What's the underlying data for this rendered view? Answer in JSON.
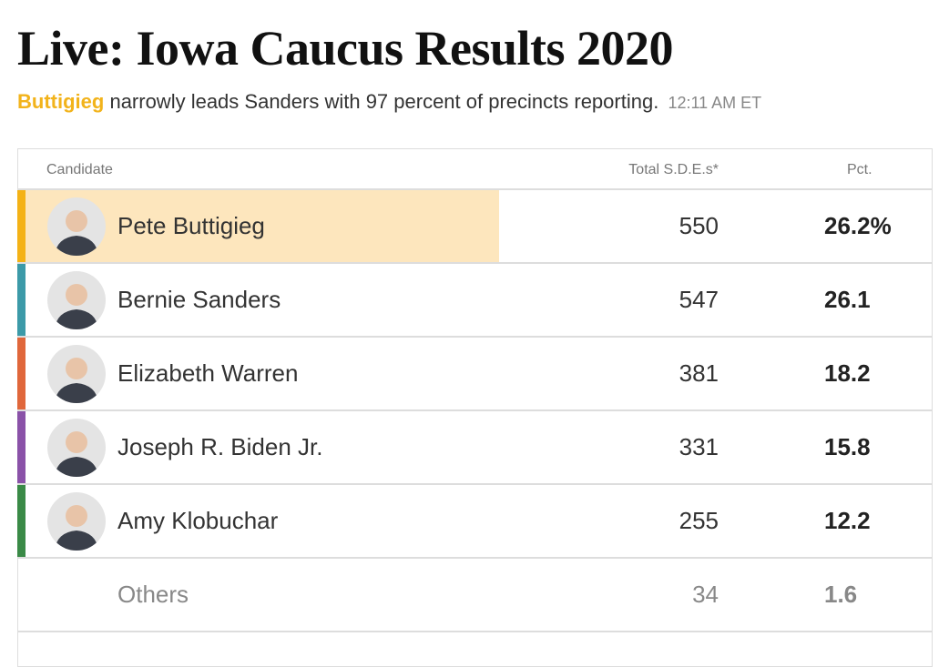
{
  "header": {
    "title": "Live: Iowa Caucus Results 2020",
    "subtitle": {
      "leader": "Buttigieg",
      "text": "narrowly leads Sanders with 97 percent of precincts reporting.",
      "time": "12:11 AM ET"
    }
  },
  "table": {
    "columns": [
      "Candidate",
      "Total S.D.E.s*",
      "Pct."
    ],
    "rows": [
      {
        "name": "Pete Buttigieg",
        "sde": 550,
        "pct": "26.2%",
        "color": "#f4b216",
        "leader": true
      },
      {
        "name": "Bernie Sanders",
        "sde": 547,
        "pct": "26.1",
        "color": "#3c9aa8"
      },
      {
        "name": "Elizabeth Warren",
        "sde": 381,
        "pct": "18.2",
        "color": "#e0673b"
      },
      {
        "name": "Joseph R. Biden Jr.",
        "sde": 331,
        "pct": "15.8",
        "color": "#8a52a8"
      },
      {
        "name": "Amy Klobuchar",
        "sde": 255,
        "pct": "12.2",
        "color": "#3a8a47"
      },
      {
        "name": "Others",
        "sde": 34,
        "pct": "1.6"
      }
    ]
  }
}
